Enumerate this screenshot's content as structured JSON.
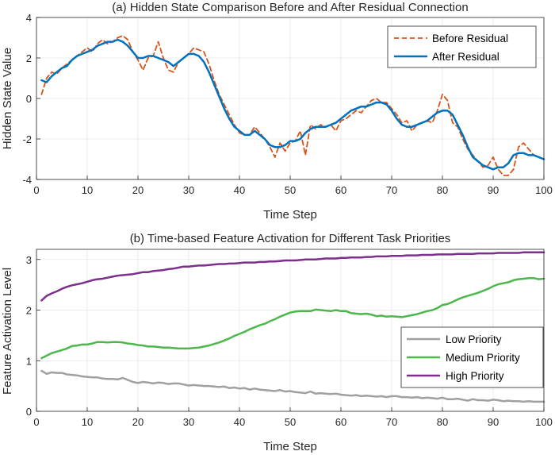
{
  "chart_data": [
    {
      "type": "line",
      "title": "(a) Hidden State Comparison Before and After Residual Connection",
      "xlabel": "Time Step",
      "ylabel": "Hidden State Value",
      "xlim": [
        0,
        100
      ],
      "ylim": [
        -4,
        4
      ],
      "xticks": [
        0,
        10,
        20,
        30,
        40,
        50,
        60,
        70,
        80,
        90,
        100
      ],
      "yticks": [
        -4,
        -2,
        0,
        2,
        4
      ],
      "legend_position": "top-right",
      "grid": true,
      "series": [
        {
          "name": "Before Residual",
          "color": "#D95319",
          "style": "dashed",
          "x": [
            1,
            2,
            3,
            4,
            5,
            6,
            7,
            8,
            9,
            10,
            11,
            12,
            13,
            14,
            15,
            16,
            17,
            18,
            19,
            20,
            21,
            22,
            23,
            24,
            25,
            26,
            27,
            28,
            29,
            30,
            31,
            32,
            33,
            34,
            35,
            36,
            37,
            38,
            39,
            40,
            41,
            42,
            43,
            44,
            45,
            46,
            47,
            48,
            49,
            50,
            51,
            52,
            53,
            54,
            55,
            56,
            57,
            58,
            59,
            60,
            61,
            62,
            63,
            64,
            65,
            66,
            67,
            68,
            69,
            70,
            71,
            72,
            73,
            74,
            75,
            76,
            77,
            78,
            79,
            80,
            81,
            82,
            83,
            84,
            85,
            86,
            87,
            88,
            89,
            90,
            91,
            92,
            93,
            94,
            95,
            96,
            97,
            98,
            99,
            100
          ],
          "y": [
            0.2,
            1.0,
            1.3,
            1.2,
            1.5,
            1.7,
            1.9,
            2.1,
            2.3,
            2.5,
            2.3,
            2.7,
            2.9,
            2.7,
            2.8,
            3.0,
            3.1,
            2.9,
            2.3,
            1.9,
            1.4,
            2.0,
            2.1,
            2.8,
            2.0,
            1.4,
            1.3,
            1.8,
            2.0,
            2.2,
            2.5,
            2.4,
            2.3,
            1.7,
            0.9,
            0.2,
            -0.3,
            -0.8,
            -1.3,
            -1.7,
            -1.8,
            -1.8,
            -1.4,
            -1.7,
            -2.0,
            -2.4,
            -2.9,
            -2.2,
            -2.6,
            -2.2,
            -2.1,
            -1.6,
            -2.8,
            -1.3,
            -1.5,
            -1.3,
            -1.4,
            -1.3,
            -1.6,
            -1.1,
            -1.0,
            -0.8,
            -0.6,
            -0.7,
            -0.4,
            -0.1,
            0.0,
            -0.2,
            -0.2,
            -0.5,
            -0.8,
            -1.2,
            -1.1,
            -1.6,
            -1.3,
            -1.2,
            -1.1,
            -1.2,
            -0.6,
            0.2,
            -0.1,
            -1.2,
            -1.4,
            -2.0,
            -2.5,
            -2.8,
            -3.1,
            -3.4,
            -3.3,
            -2.9,
            -3.5,
            -3.8,
            -3.8,
            -3.5,
            -2.4,
            -2.2,
            -2.5,
            -2.8,
            -2.9,
            -3.0
          ]
        },
        {
          "name": "After Residual",
          "color": "#0072BD",
          "style": "solid",
          "x": [
            1,
            2,
            3,
            4,
            5,
            6,
            7,
            8,
            9,
            10,
            11,
            12,
            13,
            14,
            15,
            16,
            17,
            18,
            19,
            20,
            21,
            22,
            23,
            24,
            25,
            26,
            27,
            28,
            29,
            30,
            31,
            32,
            33,
            34,
            35,
            36,
            37,
            38,
            39,
            40,
            41,
            42,
            43,
            44,
            45,
            46,
            47,
            48,
            49,
            50,
            51,
            52,
            53,
            54,
            55,
            56,
            57,
            58,
            59,
            60,
            61,
            62,
            63,
            64,
            65,
            66,
            67,
            68,
            69,
            70,
            71,
            72,
            73,
            74,
            75,
            76,
            77,
            78,
            79,
            80,
            81,
            82,
            83,
            84,
            85,
            86,
            87,
            88,
            89,
            90,
            91,
            92,
            93,
            94,
            95,
            96,
            97,
            98,
            99,
            100
          ],
          "y": [
            0.9,
            0.8,
            1.1,
            1.3,
            1.5,
            1.6,
            1.9,
            2.1,
            2.2,
            2.3,
            2.4,
            2.6,
            2.7,
            2.8,
            2.8,
            2.9,
            2.8,
            2.6,
            2.3,
            2.0,
            2.0,
            2.1,
            2.1,
            2.0,
            1.9,
            1.8,
            1.6,
            1.8,
            2.0,
            2.2,
            2.2,
            2.1,
            1.8,
            1.3,
            0.7,
            0.1,
            -0.5,
            -1.0,
            -1.4,
            -1.6,
            -1.8,
            -1.8,
            -1.6,
            -1.8,
            -2.0,
            -2.3,
            -2.4,
            -2.4,
            -2.3,
            -2.1,
            -2.1,
            -2.0,
            -1.7,
            -1.5,
            -1.4,
            -1.4,
            -1.4,
            -1.3,
            -1.2,
            -1.0,
            -0.8,
            -0.6,
            -0.5,
            -0.4,
            -0.4,
            -0.3,
            -0.2,
            -0.2,
            -0.3,
            -0.6,
            -1.0,
            -1.3,
            -1.4,
            -1.4,
            -1.3,
            -1.2,
            -1.1,
            -0.9,
            -0.7,
            -0.6,
            -0.6,
            -0.8,
            -1.3,
            -1.8,
            -2.4,
            -2.9,
            -3.1,
            -3.3,
            -3.4,
            -3.5,
            -3.4,
            -3.4,
            -3.2,
            -2.8,
            -2.7,
            -2.7,
            -2.8,
            -2.8,
            -2.9,
            -3.0
          ]
        }
      ]
    },
    {
      "type": "line",
      "title": "(b) Time-based Feature Activation for Different Task Priorities",
      "xlabel": "Time Step",
      "ylabel": "Feature Activation Level",
      "xlim": [
        0,
        100
      ],
      "ylim": [
        0,
        3.2
      ],
      "xticks": [
        0,
        10,
        20,
        30,
        40,
        50,
        60,
        70,
        80,
        90,
        100
      ],
      "yticks": [
        0,
        1,
        2,
        3
      ],
      "legend_position": "bottom-right",
      "grid": true,
      "series": [
        {
          "name": "Low Priority",
          "color": "#A0A0A0",
          "style": "solid",
          "x": [
            1,
            2,
            3,
            4,
            5,
            6,
            7,
            8,
            9,
            10,
            11,
            12,
            13,
            14,
            15,
            16,
            17,
            18,
            19,
            20,
            21,
            22,
            23,
            24,
            25,
            26,
            27,
            28,
            29,
            30,
            31,
            32,
            33,
            34,
            35,
            36,
            37,
            38,
            39,
            40,
            41,
            42,
            43,
            44,
            45,
            46,
            47,
            48,
            49,
            50,
            51,
            52,
            53,
            54,
            55,
            56,
            57,
            58,
            59,
            60,
            61,
            62,
            63,
            64,
            65,
            66,
            67,
            68,
            69,
            70,
            71,
            72,
            73,
            74,
            75,
            76,
            77,
            78,
            79,
            80,
            81,
            82,
            83,
            84,
            85,
            86,
            87,
            88,
            89,
            90,
            91,
            92,
            93,
            94,
            95,
            96,
            97,
            98,
            99,
            100
          ],
          "y": [
            0.8,
            0.74,
            0.77,
            0.76,
            0.76,
            0.73,
            0.72,
            0.71,
            0.69,
            0.68,
            0.67,
            0.67,
            0.65,
            0.64,
            0.64,
            0.63,
            0.66,
            0.62,
            0.58,
            0.56,
            0.58,
            0.57,
            0.55,
            0.57,
            0.56,
            0.54,
            0.55,
            0.55,
            0.53,
            0.51,
            0.52,
            0.51,
            0.5,
            0.5,
            0.49,
            0.48,
            0.49,
            0.46,
            0.47,
            0.45,
            0.46,
            0.43,
            0.45,
            0.43,
            0.42,
            0.41,
            0.4,
            0.42,
            0.39,
            0.4,
            0.38,
            0.37,
            0.36,
            0.39,
            0.35,
            0.36,
            0.35,
            0.34,
            0.35,
            0.33,
            0.32,
            0.31,
            0.32,
            0.3,
            0.31,
            0.3,
            0.29,
            0.3,
            0.28,
            0.3,
            0.3,
            0.28,
            0.28,
            0.27,
            0.28,
            0.26,
            0.27,
            0.26,
            0.25,
            0.27,
            0.24,
            0.24,
            0.25,
            0.23,
            0.21,
            0.24,
            0.22,
            0.22,
            0.21,
            0.23,
            0.22,
            0.2,
            0.21,
            0.2,
            0.2,
            0.19,
            0.2,
            0.19,
            0.19,
            0.19
          ]
        },
        {
          "name": "Medium Priority",
          "color": "#4CB84C",
          "style": "solid",
          "x": [
            1,
            2,
            3,
            4,
            5,
            6,
            7,
            8,
            9,
            10,
            11,
            12,
            13,
            14,
            15,
            16,
            17,
            18,
            19,
            20,
            21,
            22,
            23,
            24,
            25,
            26,
            27,
            28,
            29,
            30,
            31,
            32,
            33,
            34,
            35,
            36,
            37,
            38,
            39,
            40,
            41,
            42,
            43,
            44,
            45,
            46,
            47,
            48,
            49,
            50,
            51,
            52,
            53,
            54,
            55,
            56,
            57,
            58,
            59,
            60,
            61,
            62,
            63,
            64,
            65,
            66,
            67,
            68,
            69,
            70,
            71,
            72,
            73,
            74,
            75,
            76,
            77,
            78,
            79,
            80,
            81,
            82,
            83,
            84,
            85,
            86,
            87,
            88,
            89,
            90,
            91,
            92,
            93,
            94,
            95,
            96,
            97,
            98,
            99,
            100
          ],
          "y": [
            1.05,
            1.1,
            1.15,
            1.18,
            1.21,
            1.24,
            1.29,
            1.3,
            1.32,
            1.32,
            1.34,
            1.37,
            1.37,
            1.36,
            1.37,
            1.37,
            1.36,
            1.34,
            1.33,
            1.31,
            1.3,
            1.28,
            1.28,
            1.27,
            1.26,
            1.26,
            1.25,
            1.24,
            1.24,
            1.24,
            1.25,
            1.26,
            1.28,
            1.3,
            1.33,
            1.36,
            1.4,
            1.44,
            1.49,
            1.53,
            1.57,
            1.62,
            1.66,
            1.7,
            1.73,
            1.78,
            1.82,
            1.87,
            1.91,
            1.95,
            1.97,
            1.98,
            1.98,
            1.98,
            2.01,
            2.0,
            1.99,
            1.98,
            2.0,
            1.98,
            1.98,
            1.94,
            1.93,
            1.92,
            1.93,
            1.91,
            1.88,
            1.89,
            1.87,
            1.88,
            1.87,
            1.86,
            1.88,
            1.9,
            1.92,
            1.95,
            1.98,
            2.0,
            2.04,
            2.1,
            2.12,
            2.16,
            2.21,
            2.25,
            2.28,
            2.31,
            2.34,
            2.38,
            2.42,
            2.47,
            2.51,
            2.53,
            2.55,
            2.59,
            2.61,
            2.62,
            2.63,
            2.63,
            2.61,
            2.62
          ]
        },
        {
          "name": "High Priority",
          "color": "#7E2F8E",
          "style": "solid",
          "x": [
            1,
            2,
            3,
            4,
            5,
            6,
            7,
            8,
            9,
            10,
            11,
            12,
            13,
            14,
            15,
            16,
            17,
            18,
            19,
            20,
            21,
            22,
            23,
            24,
            25,
            26,
            27,
            28,
            29,
            30,
            31,
            32,
            33,
            34,
            35,
            36,
            37,
            38,
            39,
            40,
            41,
            42,
            43,
            44,
            45,
            46,
            47,
            48,
            49,
            50,
            51,
            52,
            53,
            54,
            55,
            56,
            57,
            58,
            59,
            60,
            61,
            62,
            63,
            64,
            65,
            66,
            67,
            68,
            69,
            70,
            71,
            72,
            73,
            74,
            75,
            76,
            77,
            78,
            79,
            80,
            81,
            82,
            83,
            84,
            85,
            86,
            87,
            88,
            89,
            90,
            91,
            92,
            93,
            94,
            95,
            96,
            97,
            98,
            99,
            100
          ],
          "y": [
            2.19,
            2.28,
            2.33,
            2.37,
            2.42,
            2.46,
            2.49,
            2.51,
            2.53,
            2.56,
            2.59,
            2.61,
            2.62,
            2.64,
            2.66,
            2.68,
            2.69,
            2.7,
            2.71,
            2.73,
            2.75,
            2.75,
            2.77,
            2.78,
            2.79,
            2.81,
            2.82,
            2.84,
            2.86,
            2.86,
            2.87,
            2.88,
            2.88,
            2.89,
            2.9,
            2.91,
            2.91,
            2.92,
            2.92,
            2.93,
            2.94,
            2.94,
            2.94,
            2.95,
            2.95,
            2.96,
            2.96,
            2.97,
            2.98,
            2.98,
            2.98,
            2.99,
            3.0,
            3.0,
            3.0,
            3.01,
            3.02,
            3.02,
            3.02,
            3.03,
            3.03,
            3.04,
            3.04,
            3.04,
            3.05,
            3.05,
            3.06,
            3.06,
            3.06,
            3.07,
            3.07,
            3.07,
            3.08,
            3.08,
            3.08,
            3.09,
            3.09,
            3.09,
            3.1,
            3.1,
            3.1,
            3.1,
            3.11,
            3.11,
            3.11,
            3.11,
            3.12,
            3.12,
            3.12,
            3.12,
            3.13,
            3.13,
            3.13,
            3.13,
            3.13,
            3.14,
            3.14,
            3.14,
            3.14,
            3.14
          ]
        }
      ]
    }
  ]
}
